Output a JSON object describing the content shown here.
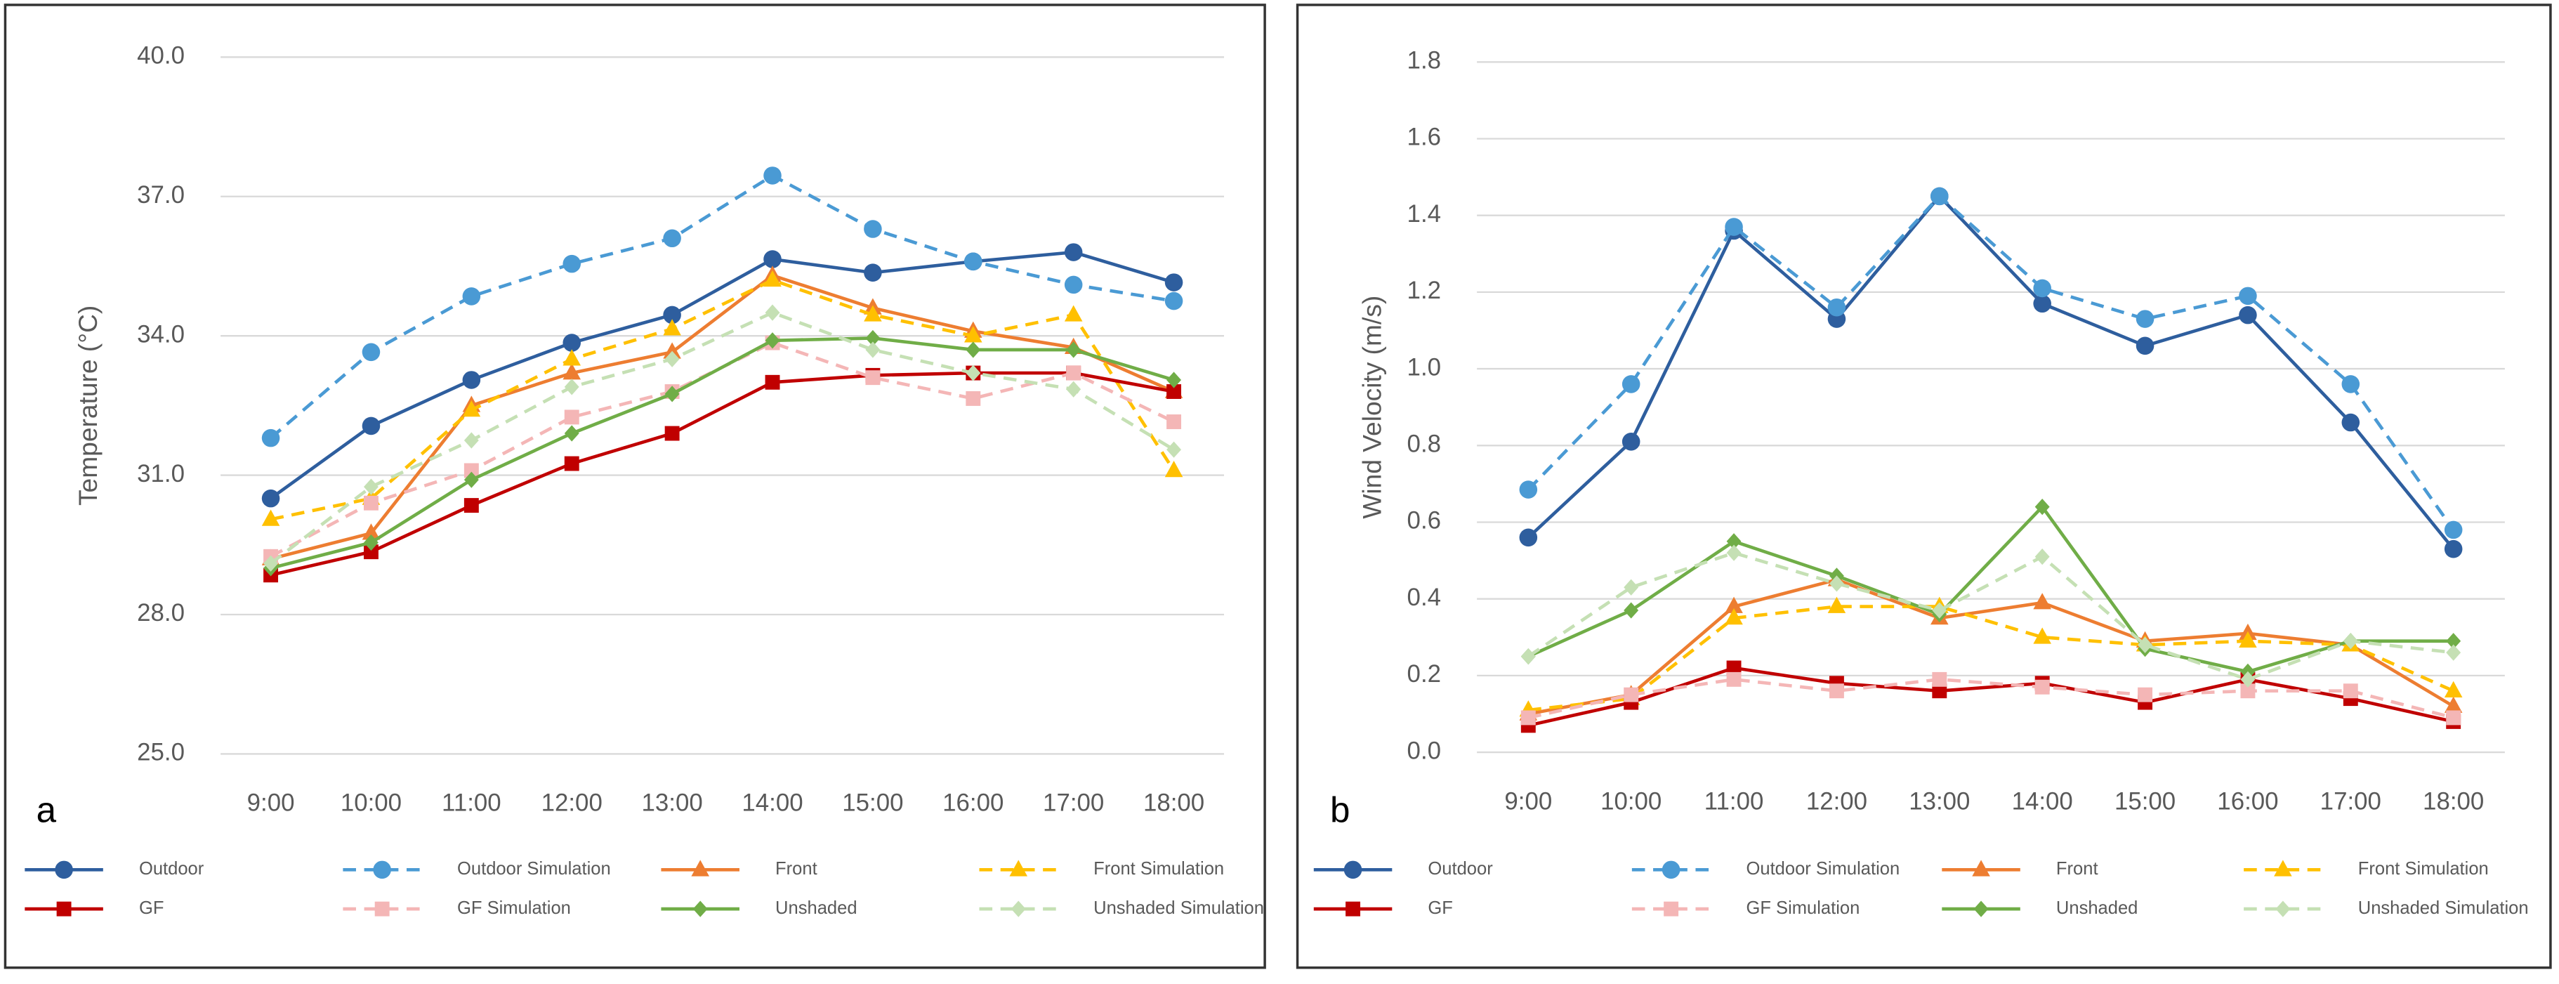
{
  "chart_data": [
    {
      "type": "line",
      "panel_label": "a",
      "y_label": "Temperature (°C)",
      "categories": [
        "9:00",
        "10:00",
        "11:00",
        "12:00",
        "13:00",
        "14:00",
        "15:00",
        "16:00",
        "17:00",
        "18:00"
      ],
      "ylim": [
        25,
        40
      ],
      "yticks": [
        {
          "value": 25,
          "label": "25.0"
        },
        {
          "value": 28,
          "label": "28.0"
        },
        {
          "value": 31,
          "label": "31.0"
        },
        {
          "value": 34,
          "label": "34.0"
        },
        {
          "value": 37,
          "label": "37.0"
        },
        {
          "value": 40,
          "label": "40.0"
        }
      ],
      "grid": true,
      "series": [
        {
          "name": "Outdoor",
          "color": "#2e5e9e",
          "dash": false,
          "marker": "circle",
          "values": [
            30.5,
            32.06,
            33.05,
            33.85,
            34.45,
            35.65,
            35.36,
            35.6,
            35.8,
            35.15
          ]
        },
        {
          "name": "Outdoor Simulation",
          "color": "#4a9ad4",
          "dash": true,
          "marker": "circle",
          "values": [
            31.8,
            33.65,
            34.85,
            35.55,
            36.1,
            37.45,
            36.3,
            35.6,
            35.1,
            34.75
          ]
        },
        {
          "name": "Front",
          "color": "#ed7d31",
          "dash": false,
          "marker": "triangle",
          "values": [
            29.2,
            29.75,
            32.5,
            33.2,
            33.65,
            35.3,
            34.6,
            34.1,
            33.75,
            32.8
          ]
        },
        {
          "name": "Front Simulation",
          "color": "#ffc000",
          "dash": true,
          "marker": "triangle",
          "values": [
            30.05,
            30.5,
            32.4,
            33.5,
            34.15,
            35.2,
            34.45,
            34.0,
            34.45,
            31.1
          ]
        },
        {
          "name": "GF",
          "color": "#c00000",
          "dash": false,
          "marker": "square",
          "values": [
            28.85,
            29.35,
            30.35,
            31.25,
            31.9,
            33.0,
            33.15,
            33.2,
            33.2,
            32.8
          ]
        },
        {
          "name": "GF Simulation",
          "color": "#f4b6b6",
          "dash": true,
          "marker": "square",
          "values": [
            29.25,
            30.4,
            31.1,
            32.25,
            32.8,
            33.85,
            33.1,
            32.65,
            33.2,
            32.15
          ]
        },
        {
          "name": "Unshaded",
          "color": "#70ad47",
          "dash": false,
          "marker": "diamond",
          "values": [
            29.0,
            29.55,
            30.9,
            31.9,
            32.75,
            33.9,
            33.95,
            33.7,
            33.7,
            33.05
          ]
        },
        {
          "name": "Unshaded Simulation",
          "color": "#c5e0b4",
          "dash": true,
          "marker": "diamond",
          "values": [
            29.1,
            30.75,
            31.75,
            32.9,
            33.5,
            34.5,
            33.7,
            33.2,
            32.85,
            31.55
          ]
        }
      ]
    },
    {
      "type": "line",
      "panel_label": "b",
      "y_label": "Wind Velocity (m/s)",
      "categories": [
        "9:00",
        "10:00",
        "11:00",
        "12:00",
        "13:00",
        "14:00",
        "15:00",
        "16:00",
        "17:00",
        "18:00"
      ],
      "ylim": [
        0,
        1.8
      ],
      "yticks": [
        {
          "value": 0,
          "label": "0.0"
        },
        {
          "value": 0.2,
          "label": "0.2"
        },
        {
          "value": 0.4,
          "label": "0.4"
        },
        {
          "value": 0.6,
          "label": "0.6"
        },
        {
          "value": 0.8,
          "label": "0.8"
        },
        {
          "value": 1,
          "label": "1.0"
        },
        {
          "value": 1.2,
          "label": "1.2"
        },
        {
          "value": 1.4,
          "label": "1.4"
        },
        {
          "value": 1.6,
          "label": "1.6"
        },
        {
          "value": 1.8,
          "label": "1.8"
        }
      ],
      "grid": true,
      "series": [
        {
          "name": "Outdoor",
          "color": "#2e5e9e",
          "dash": false,
          "marker": "circle",
          "values": [
            0.56,
            0.81,
            1.36,
            1.13,
            1.45,
            1.17,
            1.06,
            1.14,
            0.86,
            0.53
          ]
        },
        {
          "name": "Outdoor Simulation",
          "color": "#4a9ad4",
          "dash": true,
          "marker": "circle",
          "values": [
            0.685,
            0.96,
            1.37,
            1.16,
            1.45,
            1.21,
            1.13,
            1.19,
            0.96,
            0.58
          ]
        },
        {
          "name": "Front",
          "color": "#ed7d31",
          "dash": false,
          "marker": "triangle",
          "values": [
            0.1,
            0.15,
            0.38,
            0.45,
            0.35,
            0.39,
            0.29,
            0.31,
            0.28,
            0.12
          ]
        },
        {
          "name": "Front Simulation",
          "color": "#ffc000",
          "dash": true,
          "marker": "triangle",
          "values": [
            0.11,
            0.14,
            0.35,
            0.38,
            0.38,
            0.3,
            0.28,
            0.29,
            0.28,
            0.16
          ]
        },
        {
          "name": "GF",
          "color": "#c00000",
          "dash": false,
          "marker": "square",
          "values": [
            0.07,
            0.13,
            0.22,
            0.18,
            0.16,
            0.18,
            0.13,
            0.19,
            0.14,
            0.08
          ]
        },
        {
          "name": "GF Simulation",
          "color": "#f4b6b6",
          "dash": true,
          "marker": "square",
          "values": [
            0.09,
            0.15,
            0.19,
            0.16,
            0.19,
            0.17,
            0.15,
            0.16,
            0.16,
            0.09
          ]
        },
        {
          "name": "Unshaded",
          "color": "#70ad47",
          "dash": false,
          "marker": "diamond",
          "values": [
            0.25,
            0.37,
            0.55,
            0.46,
            0.36,
            0.64,
            0.27,
            0.21,
            0.29,
            0.29
          ]
        },
        {
          "name": "Unshaded Simulation",
          "color": "#c5e0b4",
          "dash": true,
          "marker": "diamond",
          "values": [
            0.25,
            0.43,
            0.52,
            0.44,
            0.37,
            0.51,
            0.28,
            0.19,
            0.29,
            0.26
          ]
        }
      ]
    }
  ]
}
